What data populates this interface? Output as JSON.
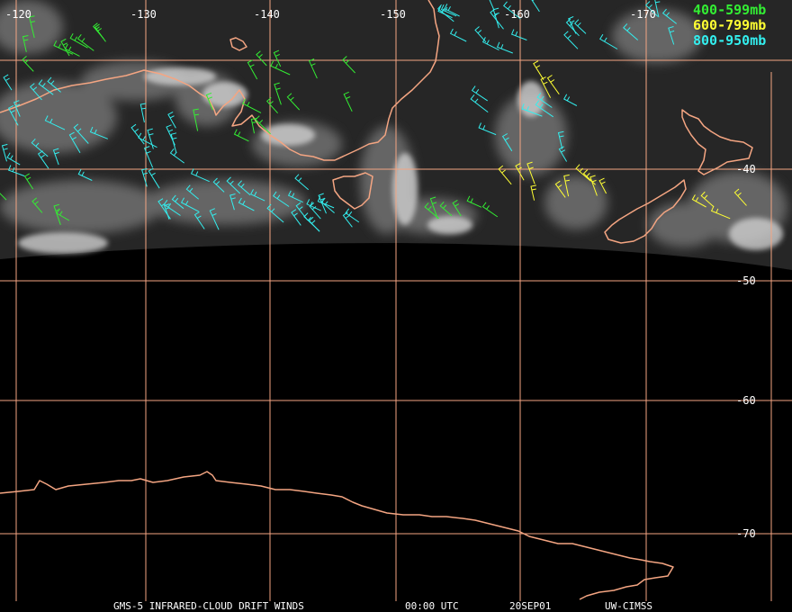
{
  "longitude_labels": [
    "-120",
    "-130",
    "-140",
    "-150",
    "-160",
    "-170"
  ],
  "latitude_labels": [
    "-40",
    "-50",
    "-60",
    "-70"
  ],
  "legend": [
    {
      "text": "400-599mb",
      "color": "#33ee33"
    },
    {
      "text": "600-799mb",
      "color": "#ffff33"
    },
    {
      "text": "800-950mb",
      "color": "#33eeee"
    }
  ],
  "footer": {
    "product": "GMS-5 INFRARED-CLOUD DRIFT WINDS",
    "time": "00:00 UTC",
    "date": "20SEP01",
    "source": "UW-CIMSS"
  },
  "colors": {
    "graticule": "#f4a582",
    "coastline": "#f4a582",
    "background": "#000000"
  }
}
